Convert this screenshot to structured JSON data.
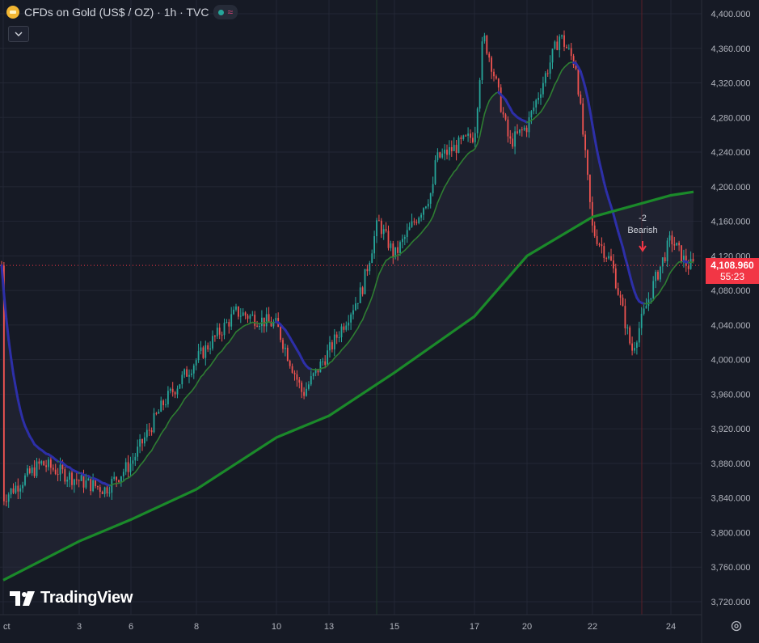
{
  "header": {
    "symbol_title": "CFDs on Gold (US$ / OZ) · 1h · TVC",
    "collapse_icon": "chevron-down-icon"
  },
  "price_label": {
    "price": "4,108.960",
    "countdown": "55:23"
  },
  "watermark": "TradingView",
  "colors": {
    "background": "#161a25",
    "up": "#26a69a",
    "down": "#ef5350",
    "ma_fast_up": "#2e7d32",
    "ma_fast_down": "#2d2fa8",
    "ma_slow": "#1b8a2a",
    "price_line": "#f23645",
    "signal": "#f23645"
  },
  "chart_data": {
    "type": "candlestick",
    "y_ticks": [
      3720,
      3760,
      3800,
      3840,
      3880,
      3920,
      3960,
      4000,
      4040,
      4080,
      4120,
      4160,
      4200,
      4240,
      4280,
      4320,
      4360,
      4400
    ],
    "y_tick_labels": [
      "3,720.000",
      "3,760.000",
      "3,800.000",
      "3,840.000",
      "3,880.000",
      "3,920.000",
      "3,960.000",
      "4,000.000",
      "4,040.000",
      "4,080.000",
      "4,120.000",
      "4,160.000",
      "4,200.000",
      "4,240.000",
      "4,280.000",
      "4,320.000",
      "4,360.000",
      "4,400.000"
    ],
    "ylim": [
      3705,
      4415
    ],
    "x_tick_labels": [
      "ct",
      "3",
      "6",
      "8",
      "10",
      "13",
      "15",
      "17",
      "20",
      "22",
      "24"
    ],
    "current_price": 4108.96,
    "price_path": [
      {
        "x": "ct",
        "price": 3840
      },
      {
        "x": "ct+",
        "price": 3880
      },
      {
        "x": "3",
        "price": 3860
      },
      {
        "x": "3+",
        "price": 3850
      },
      {
        "x": "6",
        "price": 3880
      },
      {
        "x": "6+",
        "price": 3950
      },
      {
        "x": "8",
        "price": 4000
      },
      {
        "x": "8+",
        "price": 4055
      },
      {
        "x": "10",
        "price": 4040
      },
      {
        "x": "10+",
        "price": 3960
      },
      {
        "x": "13",
        "price": 4010
      },
      {
        "x": "13+",
        "price": 4080
      },
      {
        "x": "14.5",
        "price": 4160
      },
      {
        "x": "15",
        "price": 4120
      },
      {
        "x": "15+",
        "price": 4200
      },
      {
        "x": "16",
        "price": 4230
      },
      {
        "x": "17",
        "price": 4260
      },
      {
        "x": "17.5",
        "price": 4375
      },
      {
        "x": "18",
        "price": 4340
      },
      {
        "x": "19",
        "price": 4250
      },
      {
        "x": "20",
        "price": 4270
      },
      {
        "x": "21",
        "price": 4375
      },
      {
        "x": "21.5",
        "price": 4340
      },
      {
        "x": "22",
        "price": 4150
      },
      {
        "x": "22.5",
        "price": 4110
      },
      {
        "x": "23",
        "price": 4010
      },
      {
        "x": "23.5",
        "price": 4080
      },
      {
        "x": "24",
        "price": 4140
      },
      {
        "x": "24.5",
        "price": 4109
      }
    ],
    "ma_slow": [
      {
        "x": "ct",
        "price": 3745
      },
      {
        "x": "3",
        "price": 3790
      },
      {
        "x": "6",
        "price": 3815
      },
      {
        "x": "8",
        "price": 3850
      },
      {
        "x": "10",
        "price": 3910
      },
      {
        "x": "13",
        "price": 3935
      },
      {
        "x": "15",
        "price": 3985
      },
      {
        "x": "17",
        "price": 4050
      },
      {
        "x": "20",
        "price": 4120
      },
      {
        "x": "22",
        "price": 4165
      },
      {
        "x": "24",
        "price": 4190
      }
    ],
    "annotation": {
      "value": "-2",
      "label": "Bearish"
    }
  }
}
